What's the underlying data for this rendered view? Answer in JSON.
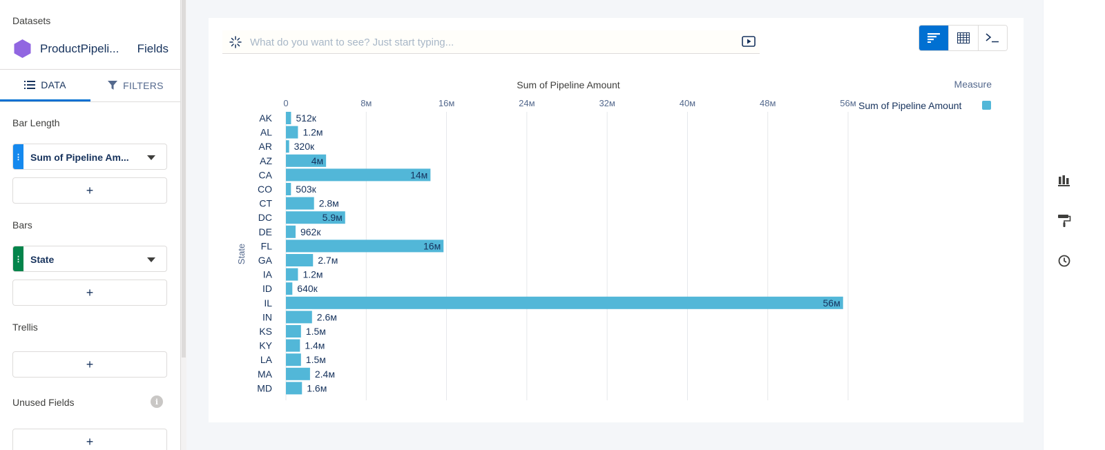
{
  "sidebar": {
    "datasets_label": "Datasets",
    "dataset_name": "ProductPipeli...",
    "fields_link": "Fields",
    "tabs": [
      {
        "label": "DATA",
        "active": true
      },
      {
        "label": "FILTERS",
        "active": false
      }
    ],
    "sections": {
      "bar_length": "Bar Length",
      "bars": "Bars",
      "trellis": "Trellis",
      "unused_fields": "Unused Fields"
    },
    "bar_length_field": "Sum of Pipeline Am...",
    "bars_field": "State",
    "add_symbol": "+"
  },
  "query": {
    "placeholder": "What do you want to see? Just start typing..."
  },
  "view_toggle": [
    "bar-chart-view",
    "table-view",
    "query-view"
  ],
  "colors": {
    "accent": "#0070d2",
    "bar": "#52b7d8",
    "measure_pill": "#1589ee",
    "dimension_pill": "#04844b",
    "dataset_icon": "#9166e1"
  },
  "chart_data": {
    "type": "bar",
    "orientation": "horizontal",
    "title": "Sum of Pipeline Amount",
    "ylabel": "State",
    "xlim": [
      0,
      56000000
    ],
    "x_ticks": [
      "0",
      "8м",
      "16м",
      "24м",
      "32м",
      "40м",
      "48м",
      "56м"
    ],
    "legend_title": "Measure",
    "legend_position": "top-right",
    "grid": true,
    "categories": [
      "AK",
      "AL",
      "AR",
      "AZ",
      "CA",
      "CO",
      "CT",
      "DC",
      "DE",
      "FL",
      "GA",
      "IA",
      "ID",
      "IL",
      "IN",
      "KS",
      "KY",
      "LA",
      "MA",
      "MD"
    ],
    "series": [
      {
        "name": "Sum of Pipeline Amount",
        "values": [
          512000,
          1200000,
          320000,
          4000000,
          14400000,
          503000,
          2800000,
          5900000,
          962000,
          15700000,
          2700000,
          1200000,
          640000,
          55500000,
          2600000,
          1500000,
          1400000,
          1500000,
          2400000,
          1600000
        ],
        "labels": [
          "512к",
          "1.2м",
          "320к",
          "4м",
          "14м",
          "503к",
          "2.8м",
          "5.9м",
          "962к",
          "16м",
          "2.7м",
          "1.2м",
          "640к",
          "56м",
          "2.6м",
          "1.5м",
          "1.4м",
          "1.5м",
          "2.4м",
          "1.6м"
        ]
      }
    ]
  },
  "right_rail": [
    "chart-type-icon",
    "format-paint-icon",
    "history-clock-icon"
  ]
}
